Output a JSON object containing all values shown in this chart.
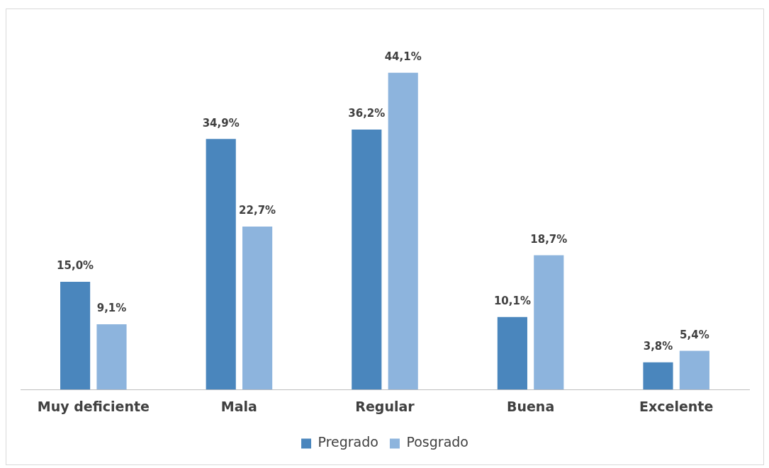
{
  "chart_data": {
    "type": "bar",
    "categories": [
      "Muy deficiente",
      "Mala",
      "Regular",
      "Buena",
      "Excelente"
    ],
    "series": [
      {
        "name": "Pregrado",
        "color": "#4a86bd",
        "values": [
          15.0,
          34.9,
          36.2,
          10.1,
          3.8
        ],
        "value_labels": [
          "15,0%",
          "34,9%",
          "36,2%",
          "10,1%",
          "3,8%"
        ]
      },
      {
        "name": "Posgrado",
        "color": "#8db4dd",
        "values": [
          9.1,
          22.7,
          44.1,
          18.7,
          5.4
        ],
        "value_labels": [
          "9,1%",
          "22,7%",
          "44,1%",
          "18,7%",
          "5,4%"
        ]
      }
    ],
    "legend": "bottom",
    "grid": false
  }
}
